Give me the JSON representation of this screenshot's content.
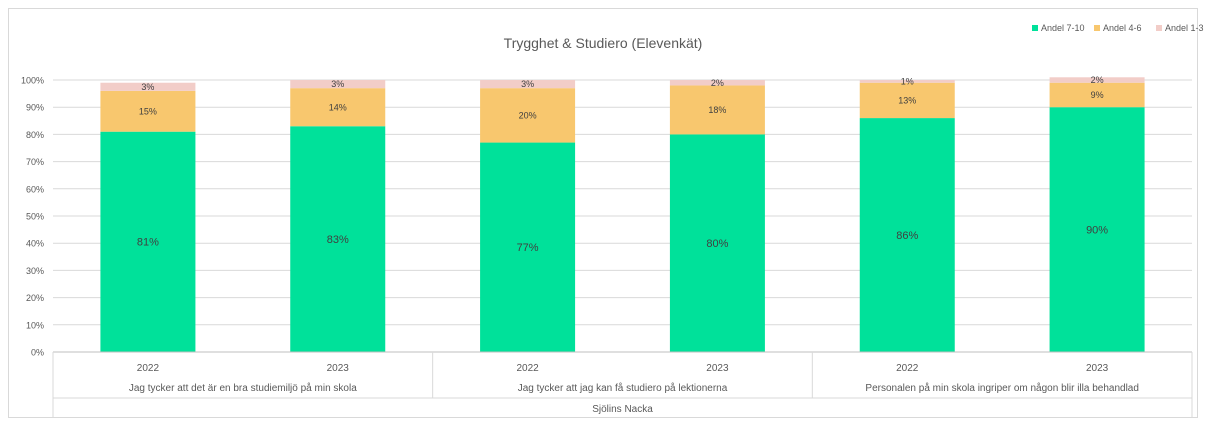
{
  "chart_data": {
    "type": "bar",
    "stacked": true,
    "title": "Trygghet & Studiero (Elevenkät)",
    "legend_position": "top-right",
    "grid": true,
    "ylim": [
      0,
      100
    ],
    "y_ticks": [
      "0%",
      "10%",
      "20%",
      "30%",
      "40%",
      "50%",
      "60%",
      "70%",
      "80%",
      "90%",
      "100%"
    ],
    "categories": [
      "2022",
      "2023",
      "2022",
      "2023",
      "2022",
      "2023"
    ],
    "groups": [
      "Jag tycker att det är en bra studiemiljö på min skola",
      "Jag tycker att jag kan få studiero på lektionerna",
      "Personalen på min skola ingriper om någon blir illa behandlad"
    ],
    "outer_group": "Sjölins Nacka",
    "series": [
      {
        "name": "Andel 7-10",
        "color": "#00e19a",
        "values": [
          81,
          83,
          77,
          80,
          86,
          90
        ],
        "labels": [
          "81%",
          "83%",
          "77%",
          "80%",
          "86%",
          "90%"
        ]
      },
      {
        "name": "Andel 4-6",
        "color": "#f8c76e",
        "values": [
          15,
          14,
          20,
          18,
          13,
          9
        ],
        "labels": [
          "15%",
          "14%",
          "20%",
          "18%",
          "13%",
          "9%"
        ]
      },
      {
        "name": "Andel 1-3",
        "color": "#f2cdc8",
        "values": [
          3,
          3,
          3,
          2,
          1,
          2
        ],
        "labels": [
          "3%",
          "3%",
          "3%",
          "2%",
          "1%",
          "2%"
        ]
      }
    ]
  }
}
